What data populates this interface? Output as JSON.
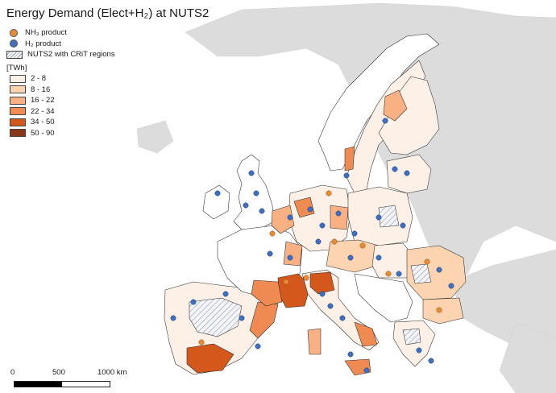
{
  "title": "Energy Demand (Elect+H₂) at NUTS2",
  "legend": {
    "nh3_label": "NH₃ product",
    "h2_label": "H₂ product",
    "hatch_label": "NUTS2 with CRiT regions",
    "unit": "[TWh]",
    "classes": [
      {
        "label": "2 - 8",
        "color": "#fdf0e6"
      },
      {
        "label": "8 - 16",
        "color": "#fcd4b2"
      },
      {
        "label": "16 - 22",
        "color": "#f9b184"
      },
      {
        "label": "22 - 34",
        "color": "#ef8a52"
      },
      {
        "label": "34 - 50",
        "color": "#d4581c"
      },
      {
        "label": "50 - 90",
        "color": "#8a3617"
      }
    ]
  },
  "colors": {
    "nh3_dot": "#e98c33",
    "h2_dot": "#3f6fbf",
    "land_outside": "#dcdcdc",
    "sea": "#ffffff"
  },
  "scale": {
    "labels": [
      "0",
      "500",
      "1000 km"
    ]
  }
}
